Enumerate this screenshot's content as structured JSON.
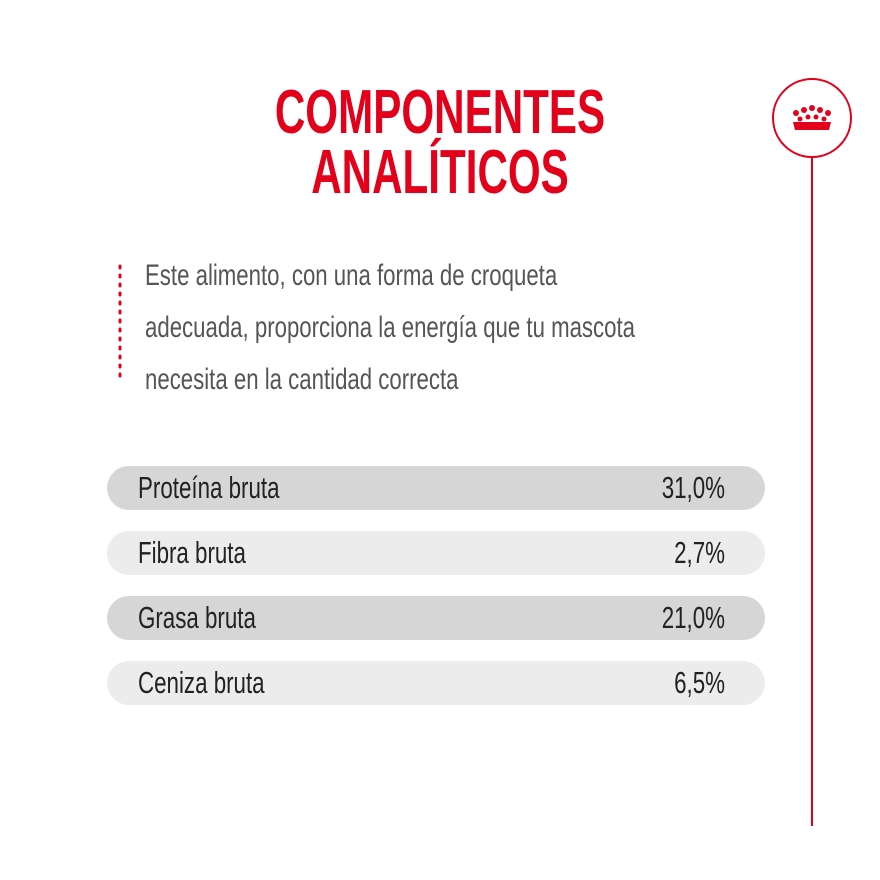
{
  "header": {
    "title_lines": [
      "COMPONENTES",
      "ANALÍTICOS"
    ]
  },
  "description": {
    "lines": [
      "Este alimento, con una forma de croqueta",
      "adecuada, proporciona la energía que tu mascota",
      "necesita en la cantidad correcta"
    ]
  },
  "table": {
    "rows": [
      [
        "Proteína bruta",
        "31,0%"
      ],
      [
        "Fibra bruta",
        "2,7%"
      ],
      [
        "Grasa bruta",
        "21,0%"
      ],
      [
        "Ceniza bruta",
        "6,5%"
      ]
    ]
  }
}
